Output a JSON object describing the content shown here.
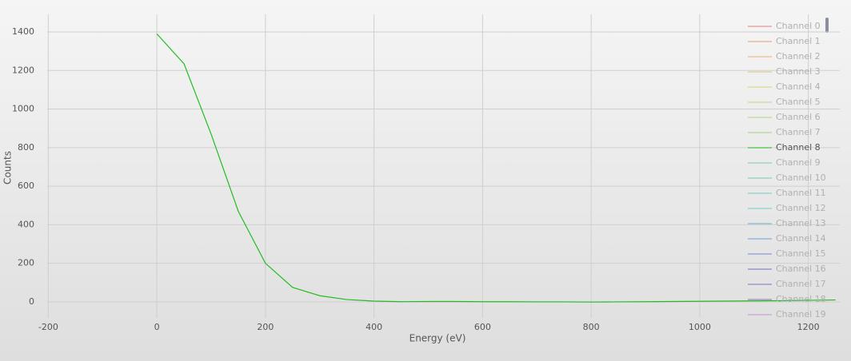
{
  "chart_data": {
    "type": "line",
    "x_label": "Energy (eV)",
    "y_label": "Counts",
    "x": [
      0,
      50,
      100,
      150,
      200,
      250,
      300,
      350,
      400,
      450,
      500,
      550,
      600,
      650,
      700,
      750,
      800,
      850,
      900,
      950,
      1000,
      1050,
      1100,
      1150,
      1200,
      1250
    ],
    "xlim": [
      -202,
      1258
    ],
    "xticks": [
      -200,
      0,
      200,
      400,
      600,
      800,
      1000,
      1200
    ],
    "ylim": [
      -83,
      1491
    ],
    "yticks": [
      0,
      200,
      400,
      600,
      800,
      1000,
      1200,
      1400
    ],
    "grid": true,
    "legend": "top-right",
    "series": [
      {
        "name": "Channel 0",
        "color": "#d9534f",
        "visible": false
      },
      {
        "name": "Channel 1",
        "color": "#e0764a",
        "visible": false
      },
      {
        "name": "Channel 2",
        "color": "#e09a3a",
        "visible": false
      },
      {
        "name": "Channel 3",
        "color": "#d4b040",
        "visible": false
      },
      {
        "name": "Channel 4",
        "color": "#c8c840",
        "visible": false
      },
      {
        "name": "Channel 5",
        "color": "#b0c850",
        "visible": false
      },
      {
        "name": "Channel 6",
        "color": "#98c860",
        "visible": false
      },
      {
        "name": "Channel 7",
        "color": "#80c860",
        "visible": false
      },
      {
        "name": "Channel 8",
        "color": "#22bb22",
        "visible": true,
        "values": [
          1390,
          1235,
          870,
          470,
          200,
          75,
          32,
          12,
          4,
          1,
          2,
          2,
          1,
          1,
          0,
          0,
          -1,
          0,
          1,
          2,
          3,
          4,
          5,
          6,
          8,
          10
        ]
      },
      {
        "name": "Channel 9",
        "color": "#50c080",
        "visible": false
      },
      {
        "name": "Channel 10",
        "color": "#40c0a0",
        "visible": false
      },
      {
        "name": "Channel 11",
        "color": "#40c0b0",
        "visible": false
      },
      {
        "name": "Channel 12",
        "color": "#40c0c0",
        "visible": false
      },
      {
        "name": "Channel 13",
        "color": "#4090c0",
        "visible": false
      },
      {
        "name": "Channel 14",
        "color": "#4080d0",
        "visible": false
      },
      {
        "name": "Channel 15",
        "color": "#4060c8",
        "visible": false
      },
      {
        "name": "Channel 16",
        "color": "#4040c0",
        "visible": false
      },
      {
        "name": "Channel 17",
        "color": "#6040b0",
        "visible": false
      },
      {
        "name": "Channel 18",
        "color": "#7040a0",
        "visible": false
      },
      {
        "name": "Channel 19",
        "color": "#c070d0",
        "visible": false
      }
    ]
  }
}
